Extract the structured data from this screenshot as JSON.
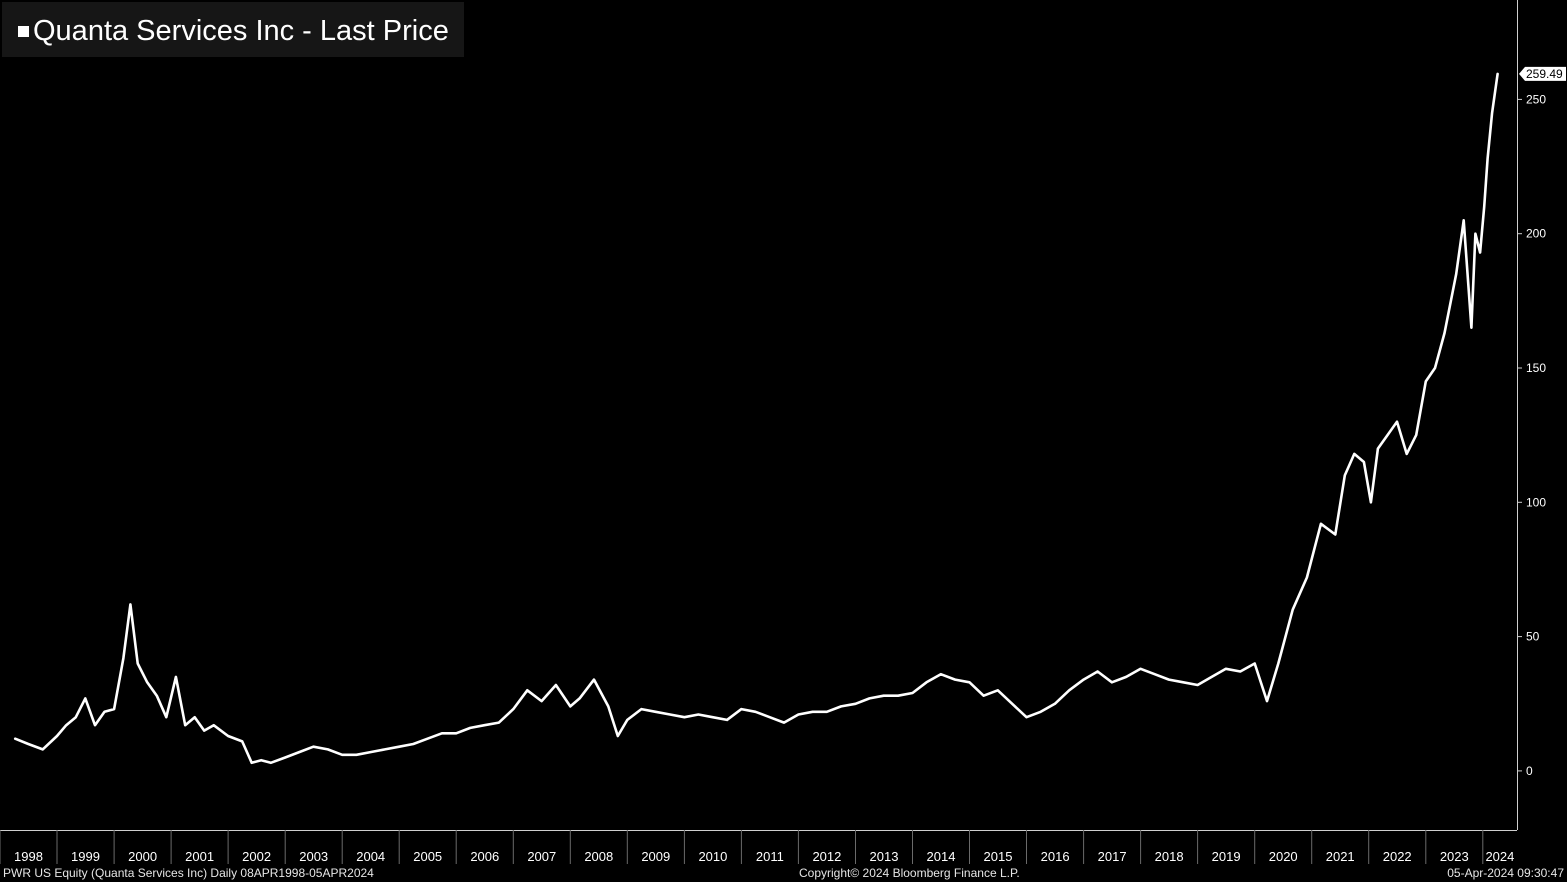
{
  "chart_data": {
    "type": "line",
    "title": "Quanta Services Inc - Last Price",
    "series": [
      {
        "name": "Quanta Services Inc - Last Price",
        "color": "#ffffff",
        "x": [
          "1998-04-08",
          "1998-07-01",
          "1998-10-01",
          "1999-01-01",
          "1999-03-01",
          "1999-05-01",
          "1999-07-01",
          "1999-09-01",
          "1999-11-01",
          "2000-01-01",
          "2000-03-01",
          "2000-04-15",
          "2000-06-01",
          "2000-08-01",
          "2000-10-01",
          "2000-12-01",
          "2001-02-01",
          "2001-04-01",
          "2001-06-01",
          "2001-08-01",
          "2001-10-01",
          "2002-01-01",
          "2002-04-01",
          "2002-06-01",
          "2002-08-01",
          "2002-10-01",
          "2003-01-01",
          "2003-04-01",
          "2003-07-01",
          "2003-10-01",
          "2004-01-01",
          "2004-04-01",
          "2004-07-01",
          "2004-10-01",
          "2005-01-01",
          "2005-04-01",
          "2005-07-01",
          "2005-10-01",
          "2006-01-01",
          "2006-04-01",
          "2006-07-01",
          "2006-10-01",
          "2007-01-01",
          "2007-04-01",
          "2007-07-01",
          "2007-10-01",
          "2008-01-01",
          "2008-03-01",
          "2008-06-01",
          "2008-09-01",
          "2008-11-01",
          "2009-01-01",
          "2009-04-01",
          "2009-07-01",
          "2009-10-01",
          "2010-01-01",
          "2010-04-01",
          "2010-07-01",
          "2010-10-01",
          "2011-01-01",
          "2011-04-01",
          "2011-07-01",
          "2011-10-01",
          "2012-01-01",
          "2012-04-01",
          "2012-07-01",
          "2012-10-01",
          "2013-01-01",
          "2013-04-01",
          "2013-07-01",
          "2013-10-01",
          "2014-01-01",
          "2014-04-01",
          "2014-07-01",
          "2014-10-01",
          "2015-01-01",
          "2015-04-01",
          "2015-07-01",
          "2015-10-01",
          "2016-01-01",
          "2016-04-01",
          "2016-07-01",
          "2016-10-01",
          "2017-01-01",
          "2017-04-01",
          "2017-07-01",
          "2017-10-01",
          "2018-01-01",
          "2018-04-01",
          "2018-07-01",
          "2018-10-01",
          "2019-01-01",
          "2019-04-01",
          "2019-07-01",
          "2019-10-01",
          "2020-01-01",
          "2020-03-20",
          "2020-06-01",
          "2020-09-01",
          "2020-12-01",
          "2021-03-01",
          "2021-06-01",
          "2021-08-01",
          "2021-10-01",
          "2021-12-01",
          "2022-01-15",
          "2022-03-01",
          "2022-05-01",
          "2022-07-01",
          "2022-09-01",
          "2022-11-01",
          "2023-01-01",
          "2023-03-01",
          "2023-05-01",
          "2023-07-15",
          "2023-09-01",
          "2023-10-20",
          "2023-11-15",
          "2023-12-15",
          "2024-01-10",
          "2024-02-01",
          "2024-03-01",
          "2024-04-05"
        ],
        "y": [
          12,
          10,
          8,
          13,
          17,
          20,
          27,
          17,
          22,
          23,
          42,
          62,
          40,
          33,
          28,
          20,
          35,
          17,
          20,
          15,
          17,
          13,
          11,
          3,
          4,
          3,
          5,
          7,
          9,
          8,
          6,
          6,
          7,
          8,
          9,
          10,
          12,
          14,
          14,
          16,
          17,
          18,
          23,
          30,
          26,
          32,
          24,
          27,
          34,
          24,
          13,
          19,
          23,
          22,
          21,
          20,
          21,
          20,
          19,
          23,
          22,
          20,
          18,
          21,
          22,
          22,
          24,
          25,
          27,
          28,
          28,
          29,
          33,
          36,
          34,
          33,
          28,
          30,
          25,
          20,
          22,
          25,
          30,
          34,
          37,
          33,
          35,
          38,
          36,
          34,
          33,
          32,
          35,
          38,
          37,
          40,
          26,
          40,
          60,
          72,
          92,
          88,
          110,
          118,
          115,
          100,
          120,
          125,
          130,
          118,
          125,
          145,
          150,
          163,
          185,
          205,
          165,
          200,
          193,
          210,
          228,
          245,
          259.49
        ]
      }
    ],
    "last_value_label": "259.49",
    "ylim": [
      -22,
      287
    ],
    "y_ticks": [
      0,
      50,
      100,
      150,
      200,
      250
    ],
    "y_tick_labels": [
      "0",
      "50",
      "100",
      "150",
      "200",
      "250"
    ],
    "x_tick_labels": [
      "1998",
      "1999",
      "2000",
      "2001",
      "2002",
      "2003",
      "2004",
      "2005",
      "2006",
      "2007",
      "2008",
      "2009",
      "2010",
      "2011",
      "2012",
      "2013",
      "2014",
      "2015",
      "2016",
      "2017",
      "2018",
      "2019",
      "2020",
      "2021",
      "2022",
      "2023",
      "2024"
    ],
    "grid": false,
    "legend": "top-left",
    "footer": {
      "left": "PWR US Equity (Quanta Services Inc)  Daily 08APR1998-05APR2024",
      "center": "Copyright© 2024 Bloomberg Finance L.P.",
      "right": "05-Apr-2024 09:30:47"
    }
  }
}
